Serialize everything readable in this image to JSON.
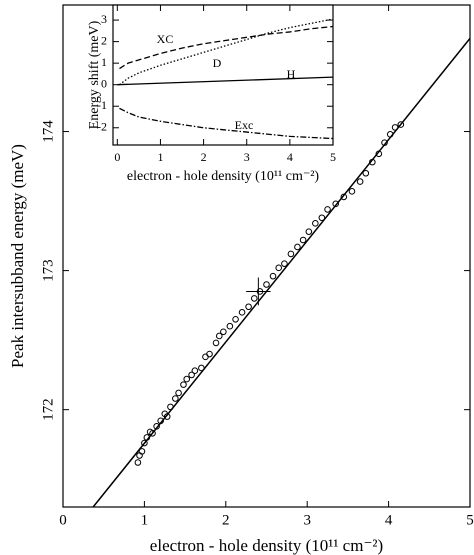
{
  "chart_data": [
    {
      "type": "scatter",
      "x_label": "electron - hole density (10¹¹ cm⁻²)",
      "y_label": "Peak intersubband energy (meV)",
      "xlim": [
        0,
        5
      ],
      "ylim": [
        171.3,
        174.91
      ],
      "xticks": [
        0,
        1,
        2,
        3,
        4,
        5
      ],
      "yticks": [
        172,
        173,
        174
      ],
      "series": [
        {
          "color": "#000000",
          "marker": "circle",
          "x": [
            0.92,
            0.94,
            0.97,
            1.0,
            1.03,
            1.07,
            1.1,
            1.15,
            1.2,
            1.25,
            1.28,
            1.32,
            1.38,
            1.42,
            1.48,
            1.52,
            1.58,
            1.62,
            1.7,
            1.75,
            1.8,
            1.88,
            1.92,
            1.97,
            2.05,
            2.12,
            2.2,
            2.28,
            2.35,
            2.42,
            2.5,
            2.58,
            2.65,
            2.72,
            2.8,
            2.88,
            2.95,
            3.02,
            3.1,
            3.18,
            3.25,
            3.35,
            3.45,
            3.55,
            3.65,
            3.72,
            3.8,
            3.88,
            3.95,
            4.02,
            4.08,
            4.15
          ],
          "values": [
            171.62,
            171.67,
            171.7,
            171.76,
            171.8,
            171.84,
            171.83,
            171.88,
            171.92,
            171.97,
            171.95,
            172.02,
            172.08,
            172.12,
            172.18,
            172.22,
            172.25,
            172.28,
            172.3,
            172.38,
            172.4,
            172.48,
            172.53,
            172.56,
            172.6,
            172.65,
            172.7,
            172.74,
            172.8,
            172.85,
            172.9,
            172.96,
            173.02,
            173.05,
            173.12,
            173.17,
            173.22,
            173.28,
            173.34,
            173.38,
            173.44,
            173.48,
            173.53,
            173.57,
            173.64,
            173.7,
            173.78,
            173.84,
            173.92,
            173.98,
            174.03,
            174.05
          ]
        },
        {
          "color": "#000000",
          "marker": "line",
          "x": [
            0.37,
            5
          ],
          "values": [
            171.3,
            174.67
          ]
        }
      ],
      "errorbar": {
        "x": 2.4,
        "y": 172.85,
        "xerr": 0.15,
        "yerr": 0.1
      }
    },
    {
      "type": "line",
      "x_label": "electron - hole density (10¹¹ cm⁻²)",
      "y_label": "Energy shift (meV)",
      "xlim": [
        -0.1,
        5
      ],
      "ylim": [
        -2.8,
        3.7
      ],
      "xticks": [
        0,
        1,
        2,
        3,
        4,
        5
      ],
      "yticks": [
        -2,
        -1,
        0,
        1,
        2,
        3
      ],
      "series": [
        {
          "color": "#000000",
          "dash": "6,3",
          "x": [
            0.05,
            0.25,
            0.5,
            1,
            1.5,
            2,
            2.5,
            3,
            3.5,
            4,
            4.5,
            5
          ],
          "values": [
            0.75,
            1.0,
            1.15,
            1.45,
            1.7,
            1.9,
            2.05,
            2.2,
            2.35,
            2.45,
            2.6,
            2.7
          ]
        },
        {
          "color": "#000000",
          "dash": "1.5,2",
          "x": [
            0.05,
            0.25,
            0.5,
            1,
            1.5,
            2,
            2.5,
            3,
            3.5,
            4,
            4.5,
            5
          ],
          "values": [
            0,
            0.3,
            0.55,
            0.9,
            1.2,
            1.5,
            1.8,
            2.1,
            2.4,
            2.65,
            2.85,
            3.05
          ]
        },
        {
          "color": "#000000",
          "dash": "none",
          "x": [
            0,
            5
          ],
          "values": [
            0,
            0.35
          ]
        },
        {
          "color": "#000000",
          "dash": "6,2,1.5,2",
          "x": [
            0.05,
            0.25,
            0.5,
            1,
            1.5,
            2,
            2.5,
            3,
            3.5,
            4,
            4.5,
            5
          ],
          "values": [
            -1.1,
            -1.3,
            -1.5,
            -1.7,
            -1.85,
            -2.0,
            -2.1,
            -2.2,
            -2.3,
            -2.4,
            -2.45,
            -2.5
          ]
        }
      ],
      "annotations": [
        "XC",
        "D",
        "H",
        "Exc"
      ]
    }
  ]
}
